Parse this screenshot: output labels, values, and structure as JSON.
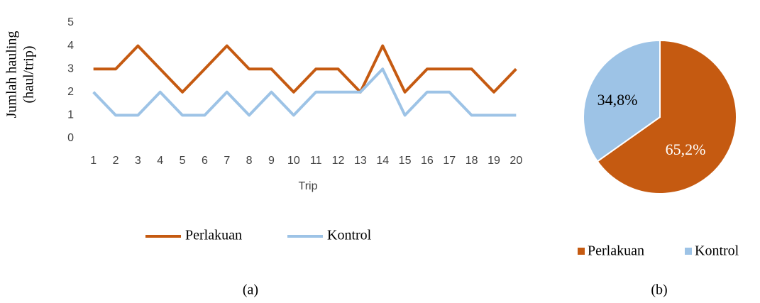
{
  "chart_data": [
    {
      "type": "line",
      "caption": "(a)",
      "xlabel": "Trip",
      "ylabel": [
        "Jumlah hauling",
        "(haul/trip)"
      ],
      "categories": [
        "1",
        "2",
        "3",
        "4",
        "5",
        "6",
        "7",
        "8",
        "9",
        "10",
        "11",
        "12",
        "13",
        "14",
        "15",
        "16",
        "17",
        "18",
        "19",
        "20"
      ],
      "series": [
        {
          "name": "Perlakuan",
          "color": "#c55a11",
          "values": [
            3,
            3,
            4,
            3,
            2,
            3,
            4,
            3,
            3,
            2,
            3,
            3,
            2,
            4,
            2,
            3,
            3,
            3,
            2,
            3
          ]
        },
        {
          "name": "Kontrol",
          "color": "#9dc3e6",
          "values": [
            2,
            1,
            1,
            2,
            1,
            1,
            2,
            1,
            2,
            1,
            2,
            2,
            2,
            3,
            1,
            2,
            2,
            1,
            1,
            1
          ]
        }
      ],
      "ylim": [
        0,
        5
      ],
      "yticks": [
        0,
        1,
        2,
        3,
        4,
        5
      ],
      "grid": false,
      "legend": "bottom"
    },
    {
      "type": "pie",
      "caption": "(b)",
      "categories": [
        "Perlakuan",
        "Kontrol"
      ],
      "values": [
        65.2,
        34.8
      ],
      "value_labels": [
        "65,2%",
        "34,8%"
      ],
      "colors": [
        "#c55a11",
        "#9dc3e6"
      ],
      "legend": "bottom"
    }
  ]
}
